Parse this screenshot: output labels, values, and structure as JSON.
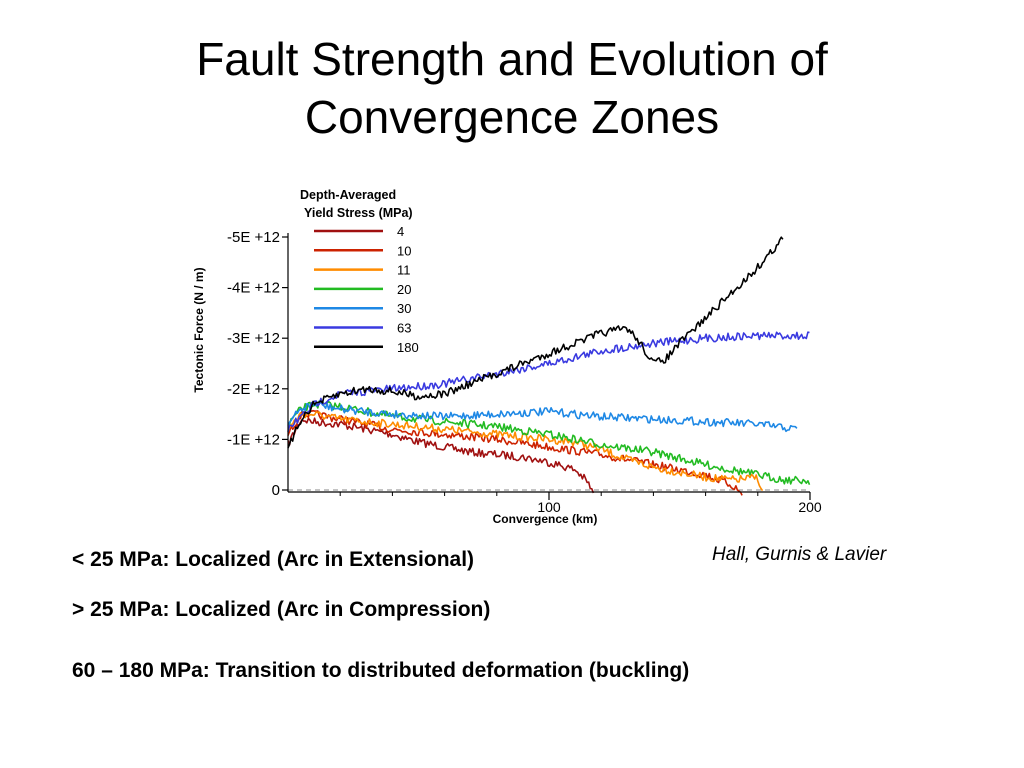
{
  "slide": {
    "title_line1": "Fault Strength and Evolution of",
    "title_line2": "Convergence Zones",
    "bullets": [
      "< 25 MPa: Localized (Arc in Extensional)",
      "> 25 MPa: Localized (Arc in Compression)",
      "60 – 180 MPa:  Transition to distributed deformation (buckling)"
    ],
    "credit": "Hall, Gurnis & Lavier"
  },
  "chart_data": {
    "type": "line",
    "xlabel": "Convergence (km)",
    "ylabel": "Tectonic Force (N / m)",
    "legend_title_line1": "Depth-Averaged",
    "legend_title_line2": "Yield Stress (MPa)",
    "legend_position": "top-left",
    "xlim": [
      0,
      200
    ],
    "ylim": [
      0,
      -5000000000000.0
    ],
    "y_axis_inverted": true,
    "x_ticks": [
      100,
      200
    ],
    "x_tick_labels": [
      "100",
      "200"
    ],
    "y_ticks": [
      0,
      -1000000000000.0,
      -2000000000000.0,
      -3000000000000.0,
      -4000000000000.0,
      -5000000000000.0
    ],
    "y_tick_labels": [
      "0",
      "-1E +12",
      "-2E +12",
      "-3E +12",
      "-4E +12",
      "-5E +12"
    ],
    "zero_line_dashed": true,
    "series": [
      {
        "name": "4",
        "color": "#a01010",
        "x": [
          0,
          5,
          10,
          20,
          30,
          40,
          50,
          60,
          70,
          80,
          90,
          100,
          110,
          114,
          116,
          117
        ],
        "y": [
          -900000000000.0,
          -1400000000000.0,
          -1350000000000.0,
          -1300000000000.0,
          -1200000000000.0,
          -1100000000000.0,
          -950000000000.0,
          -850000000000.0,
          -750000000000.0,
          -700000000000.0,
          -650000000000.0,
          -550000000000.0,
          -400000000000.0,
          -200000000000.0,
          -50000000000.0,
          100000000000.0
        ]
      },
      {
        "name": "10",
        "color": "#cc2200",
        "x": [
          0,
          5,
          10,
          20,
          30,
          40,
          60,
          80,
          100,
          120,
          140,
          160,
          170,
          172,
          174
        ],
        "y": [
          -1100000000000.0,
          -1500000000000.0,
          -1500000000000.0,
          -1400000000000.0,
          -1300000000000.0,
          -1200000000000.0,
          -1100000000000.0,
          -1000000000000.0,
          -850000000000.0,
          -700000000000.0,
          -500000000000.0,
          -300000000000.0,
          -100000000000.0,
          -20000000000.0,
          100000000000.0
        ]
      },
      {
        "name": "11",
        "color": "#ff8c00",
        "x": [
          0,
          5,
          10,
          20,
          30,
          40,
          60,
          80,
          100,
          110,
          120,
          130,
          140,
          150,
          160,
          170,
          175,
          180,
          182
        ],
        "y": [
          -1200000000000.0,
          -1500000000000.0,
          -1500000000000.0,
          -1400000000000.0,
          -1350000000000.0,
          -1300000000000.0,
          -1200000000000.0,
          -1100000000000.0,
          -1000000000000.0,
          -950000000000.0,
          -800000000000.0,
          -600000000000.0,
          -450000000000.0,
          -350000000000.0,
          -250000000000.0,
          -200000000000.0,
          -220000000000.0,
          -250000000000.0,
          100000000000.0
        ]
      },
      {
        "name": "20",
        "color": "#22bb22",
        "x": [
          0,
          5,
          10,
          20,
          40,
          60,
          80,
          100,
          120,
          140,
          160,
          180,
          190,
          200
        ],
        "y": [
          -1300000000000.0,
          -1600000000000.0,
          -1700000000000.0,
          -1650000000000.0,
          -1450000000000.0,
          -1350000000000.0,
          -1250000000000.0,
          -1100000000000.0,
          -900000000000.0,
          -750000000000.0,
          -500000000000.0,
          -300000000000.0,
          -200000000000.0,
          -180000000000.0
        ]
      },
      {
        "name": "30",
        "color": "#1e88e5",
        "x": [
          0,
          5,
          10,
          20,
          40,
          60,
          80,
          100,
          110,
          120,
          140,
          160,
          180,
          195
        ],
        "y": [
          -1300000000000.0,
          -1600000000000.0,
          -1700000000000.0,
          -1600000000000.0,
          -1500000000000.0,
          -1450000000000.0,
          -1500000000000.0,
          -1550000000000.0,
          -1500000000000.0,
          -1450000000000.0,
          -1400000000000.0,
          -1350000000000.0,
          -1300000000000.0,
          -1200000000000.0
        ]
      },
      {
        "name": "63",
        "color": "#3a3ae0",
        "x": [
          0,
          10,
          20,
          40,
          60,
          80,
          100,
          120,
          140,
          160,
          180,
          200
        ],
        "y": [
          -1200000000000.0,
          -1700000000000.0,
          -1900000000000.0,
          -2000000000000.0,
          -2100000000000.0,
          -2300000000000.0,
          -2500000000000.0,
          -2750000000000.0,
          -2900000000000.0,
          -3000000000000.0,
          -3050000000000.0,
          -3050000000000.0
        ]
      },
      {
        "name": "180",
        "color": "#000000",
        "x": [
          0,
          5,
          10,
          20,
          30,
          40,
          50,
          60,
          70,
          80,
          90,
          100,
          110,
          120,
          130,
          135,
          140,
          145,
          150,
          160,
          170,
          180,
          190
        ],
        "y": [
          -800000000000.0,
          -1400000000000.0,
          -1700000000000.0,
          -1900000000000.0,
          -2000000000000.0,
          -1950000000000.0,
          -1850000000000.0,
          -1900000000000.0,
          -2100000000000.0,
          -2300000000000.0,
          -2500000000000.0,
          -2700000000000.0,
          -2900000000000.0,
          -3100000000000.0,
          -3200000000000.0,
          -2900000000000.0,
          -2500000000000.0,
          -2600000000000.0,
          -2900000000000.0,
          -3400000000000.0,
          -3900000000000.0,
          -4400000000000.0,
          -5000000000000.0
        ]
      }
    ]
  }
}
